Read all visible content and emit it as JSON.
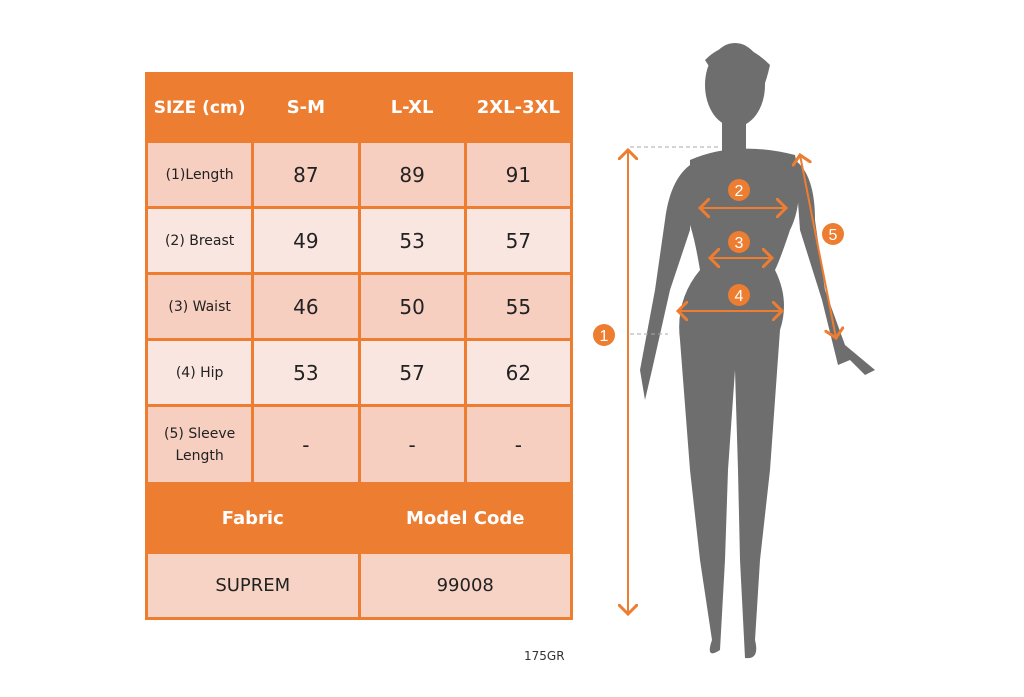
{
  "size_table": {
    "header": [
      "SIZE (cm)",
      "S-M",
      "L-XL",
      "2XL-3XL"
    ],
    "rows": [
      {
        "label": "(1)Length",
        "values": [
          "87",
          "89",
          "91"
        ]
      },
      {
        "label": "(2) Breast",
        "values": [
          "49",
          "53",
          "57"
        ]
      },
      {
        "label": "(3) Waist",
        "values": [
          "46",
          "50",
          "55"
        ]
      },
      {
        "label": "(4) Hip",
        "values": [
          "53",
          "57",
          "62"
        ]
      },
      {
        "label": "(5) Sleeve Length",
        "values": [
          "-",
          "-",
          "-"
        ]
      }
    ]
  },
  "info_table": {
    "headers": [
      "Fabric",
      "Model Code"
    ],
    "values": [
      "SUPREM",
      "99008"
    ]
  },
  "note": "175GR",
  "diagram": {
    "markers": [
      "1",
      "2",
      "3",
      "4",
      "5"
    ]
  },
  "colors": {
    "accent": "#ED7D31",
    "silhouette": "#6E6E6E"
  }
}
